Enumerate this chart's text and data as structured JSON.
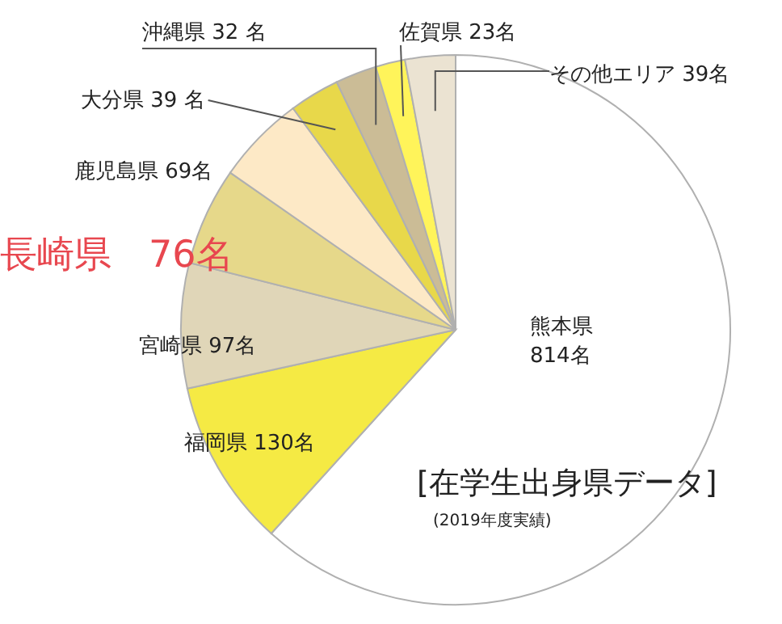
{
  "chart_data": {
    "type": "pie",
    "categories": [
      "熊本県",
      "福岡県",
      "宮崎県",
      "長崎県",
      "鹿児島県",
      "大分県",
      "沖縄県",
      "佐賀県",
      "その他エリア"
    ],
    "values": [
      814,
      130,
      97,
      76,
      69,
      39,
      32,
      23,
      39
    ],
    "value_labels": [
      "814名",
      "130名",
      "97名",
      "76名",
      "69名",
      "39 名",
      "32 名",
      "23名",
      "39名"
    ],
    "colors": [
      "#ffffff",
      "#f5ea44",
      "#e0d6b8",
      "#e6d88a",
      "#fde9c6",
      "#e8d84a",
      "#cbbc96",
      "#fff45a",
      "#ebe3d2"
    ],
    "annotations": [
      "[在学生出身県データ]",
      "(2019年度実績)"
    ]
  }
}
